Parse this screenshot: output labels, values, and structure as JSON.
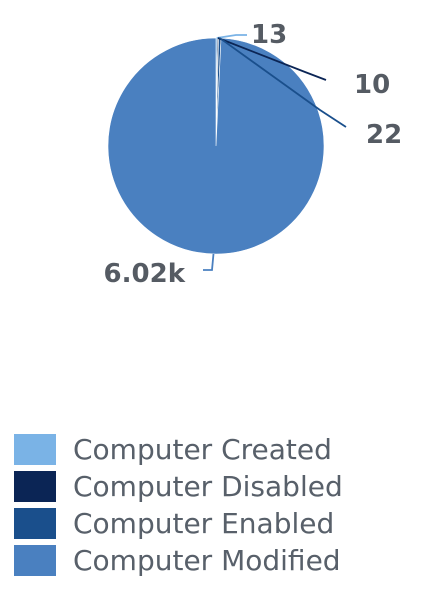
{
  "chart_data": {
    "type": "pie",
    "categories": [
      "Computer Created",
      "Computer Disabled",
      "Computer Enabled",
      "Computer Modified"
    ],
    "values": [
      13,
      10,
      22,
      6020
    ],
    "data_labels": [
      "13",
      "10",
      "22",
      "6.02k"
    ],
    "colors": [
      "#7ab3e6",
      "#0b2555",
      "#1a4f8c",
      "#4a80c0"
    ],
    "legend_position": "bottom"
  },
  "legend": {
    "items": [
      {
        "label": "Computer Created",
        "color": "#7ab3e6"
      },
      {
        "label": "Computer Disabled",
        "color": "#0b2555"
      },
      {
        "label": "Computer Enabled",
        "color": "#1a4f8c"
      },
      {
        "label": "Computer Modified",
        "color": "#4a80c0"
      }
    ]
  }
}
